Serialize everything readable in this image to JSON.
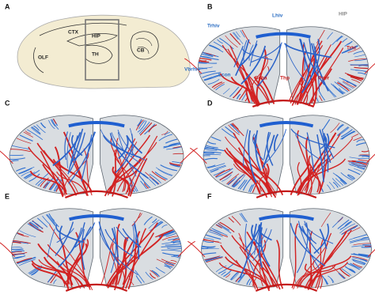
{
  "panels": [
    {
      "label": "A",
      "annotations": [
        "OLF",
        "CTX",
        "HIP",
        "TH",
        "CB"
      ]
    },
    {
      "label": "B",
      "annotations": [
        "Trhiv",
        "Lhiv",
        "HIP",
        "Trhi",
        "Vbrhiv",
        "Lcon",
        "Scba",
        "Thp",
        "Pcer"
      ]
    },
    {
      "label": "C"
    },
    {
      "label": "D"
    },
    {
      "label": "E"
    },
    {
      "label": "F"
    }
  ]
}
